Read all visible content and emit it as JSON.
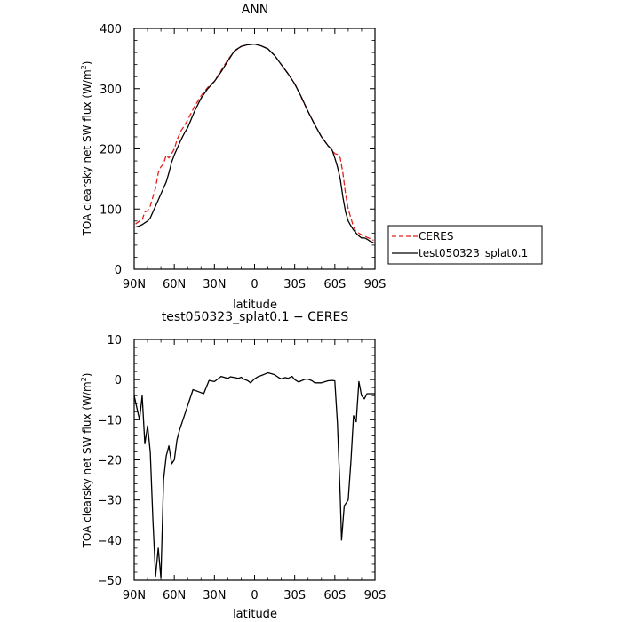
{
  "chart_data": [
    {
      "type": "line",
      "title": "ANN",
      "xlabel": "latitude",
      "ylabel": "TOA clearsky net SW flux (W/m",
      "ylabel_sup": "2",
      "ylabel_close": ")",
      "xlim": [
        90,
        -90
      ],
      "ylim": [
        0,
        400
      ],
      "x_ticks": [
        90,
        60,
        30,
        0,
        -30,
        -60,
        -90
      ],
      "x_tick_labels": [
        "90N",
        "60N",
        "30N",
        "0",
        "30S",
        "60S",
        "90S"
      ],
      "y_ticks": [
        0,
        100,
        200,
        300,
        400
      ],
      "y_tick_labels": [
        "0",
        "100",
        "200",
        "300",
        "400"
      ],
      "legend_position": "right",
      "series": [
        {
          "name": "CERES",
          "color": "#e0201b",
          "dash": "dashed",
          "x": [
            89,
            86,
            84,
            82,
            80,
            78,
            76,
            74,
            72,
            70,
            68,
            66,
            64,
            62,
            60,
            58,
            55,
            52,
            50,
            45,
            40,
            35,
            30,
            25,
            20,
            15,
            10,
            5,
            0,
            -5,
            -10,
            -15,
            -20,
            -25,
            -30,
            -35,
            -40,
            -45,
            -50,
            -55,
            -58,
            -60,
            -62,
            -64,
            -66,
            -68,
            -70,
            -72,
            -74,
            -76,
            -78,
            -80,
            -82,
            -84,
            -86,
            -89
          ],
          "y": [
            75,
            80,
            82,
            95,
            97,
            105,
            120,
            135,
            160,
            170,
            175,
            190,
            185,
            192,
            200,
            215,
            230,
            240,
            248,
            270,
            288,
            302,
            312,
            330,
            348,
            362,
            370,
            373,
            374,
            371,
            366,
            355,
            340,
            325,
            308,
            285,
            262,
            240,
            220,
            205,
            198,
            192,
            191,
            185,
            160,
            125,
            100,
            85,
            70,
            62,
            60,
            57,
            55,
            53,
            51,
            48
          ]
        },
        {
          "name": "test050323_splat0.1",
          "color": "#000000",
          "dash": "solid",
          "x": [
            89,
            86,
            84,
            82,
            80,
            78,
            76,
            74,
            72,
            70,
            68,
            66,
            64,
            62,
            60,
            58,
            55,
            52,
            50,
            45,
            40,
            35,
            30,
            25,
            20,
            15,
            10,
            5,
            0,
            -5,
            -10,
            -15,
            -20,
            -25,
            -30,
            -35,
            -40,
            -45,
            -50,
            -55,
            -58,
            -60,
            -62,
            -64,
            -66,
            -68,
            -70,
            -72,
            -74,
            -76,
            -78,
            -80,
            -82,
            -84,
            -86,
            -89
          ],
          "y": [
            70,
            72,
            74,
            77,
            80,
            85,
            95,
            105,
            115,
            125,
            135,
            145,
            160,
            178,
            190,
            200,
            215,
            228,
            235,
            262,
            284,
            300,
            312,
            328,
            346,
            363,
            370,
            373,
            374,
            371,
            366,
            355,
            340,
            325,
            308,
            286,
            262,
            240,
            220,
            205,
            198,
            185,
            170,
            150,
            120,
            95,
            80,
            72,
            65,
            60,
            55,
            52,
            52,
            50,
            47,
            44
          ]
        }
      ]
    },
    {
      "type": "line",
      "title": "test050323_splat0.1 − CERES",
      "xlabel": "latitude",
      "ylabel": "TOA clearsky net SW flux (W/m",
      "ylabel_sup": "2",
      "ylabel_close": ")",
      "xlim": [
        90,
        -90
      ],
      "ylim": [
        -50,
        10
      ],
      "x_ticks": [
        90,
        60,
        30,
        0,
        -30,
        -60,
        -90
      ],
      "x_tick_labels": [
        "90N",
        "60N",
        "30N",
        "0",
        "30S",
        "60S",
        "90S"
      ],
      "y_ticks": [
        -50,
        -40,
        -30,
        -20,
        -10,
        0,
        10
      ],
      "y_tick_labels": [
        "−50",
        "−40",
        "−30",
        "−20",
        "−10",
        "0",
        "10"
      ],
      "series": [
        {
          "name": "",
          "color": "#000000",
          "dash": "solid",
          "x": [
            90,
            88,
            86,
            84,
            82,
            80,
            78,
            76,
            74,
            72,
            70,
            68,
            66,
            64,
            62,
            60,
            58,
            56,
            54,
            50,
            46,
            42,
            38,
            34,
            30,
            25,
            20,
            18,
            15,
            12,
            10,
            8,
            5,
            3,
            0,
            -3,
            -5,
            -8,
            -10,
            -13,
            -15,
            -18,
            -20,
            -23,
            -25,
            -28,
            -30,
            -33,
            -35,
            -38,
            -40,
            -43,
            -45,
            -48,
            -50,
            -53,
            -55,
            -58,
            -60,
            -62,
            -64,
            -65,
            -67,
            -70,
            -72,
            -74,
            -76,
            -78,
            -80,
            -82,
            -84,
            -86,
            -88,
            -90
          ],
          "y": [
            -4,
            -7,
            -10,
            -4,
            -16,
            -11.5,
            -18,
            -35,
            -49,
            -42,
            -49.5,
            -25,
            -19,
            -16.5,
            -21,
            -20,
            -15,
            -12.5,
            -10.5,
            -6.5,
            -2.5,
            -3,
            -3.5,
            -0.2,
            -0.5,
            0.8,
            0.3,
            0.7,
            0.5,
            0.3,
            0.6,
            0.1,
            -0.3,
            -0.8,
            0.2,
            0.8,
            1,
            1.4,
            1.7,
            1.4,
            1.2,
            0.5,
            0.2,
            0.5,
            0.3,
            0.8,
            0,
            -0.6,
            -0.3,
            0.1,
            0.1,
            -0.3,
            -0.8,
            -0.8,
            -0.8,
            -0.5,
            -0.3,
            -0.2,
            -0.3,
            -11,
            -29,
            -40,
            -31.5,
            -30,
            -20.5,
            -9,
            -10.5,
            -0.5,
            -4,
            -4.8,
            -3.5,
            -3.5,
            -3.5,
            -3.5
          ]
        }
      ]
    }
  ]
}
